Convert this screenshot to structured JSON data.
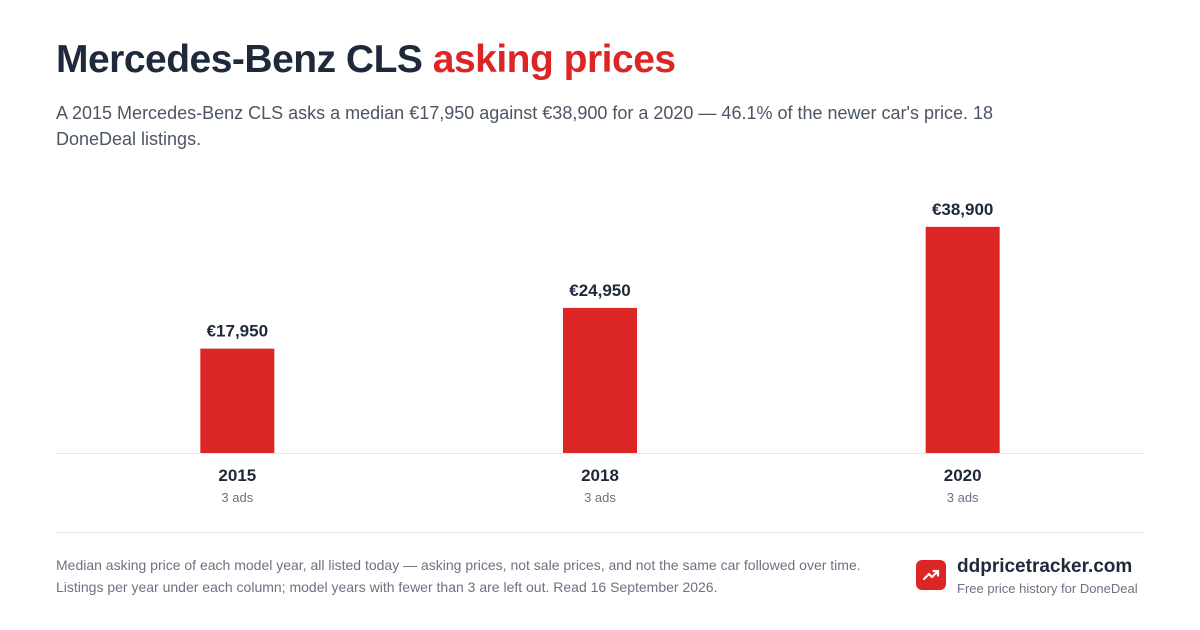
{
  "header": {
    "title_main": "Mercedes-Benz CLS",
    "title_accent": "asking prices",
    "subtitle": "A 2015 Mercedes-Benz CLS asks a median €17,950 against €38,900 for a 2020 — 46.1% of the newer car's price. 18 DoneDeal listings."
  },
  "chart_data": {
    "type": "bar",
    "categories": [
      "2015",
      "2018",
      "2020"
    ],
    "values": [
      17950,
      24950,
      38900
    ],
    "value_labels": [
      "€17,950",
      "€24,950",
      "€38,900"
    ],
    "sublabels": [
      "3 ads",
      "3 ads",
      "3 ads"
    ],
    "title": "Mercedes-Benz CLS asking prices",
    "xlabel": "",
    "ylabel": "",
    "ylim": [
      0,
      43000
    ],
    "grid": false,
    "legend": "none",
    "colors": {
      "bar": "#dc2626",
      "baseline": "#e5e7eb"
    }
  },
  "footer": {
    "note": "Median asking price of each model year, all listed today — asking prices, not sale prices, and not the same car followed over time. Listings per year under each column; model years with fewer than 3 are left out. Read 16 September 2026.",
    "brand_name": "ddpricetracker.com",
    "brand_tagline": "Free price history for DoneDeal",
    "brand_icon": "trending-up-icon",
    "brand_color": "#dc2626"
  }
}
